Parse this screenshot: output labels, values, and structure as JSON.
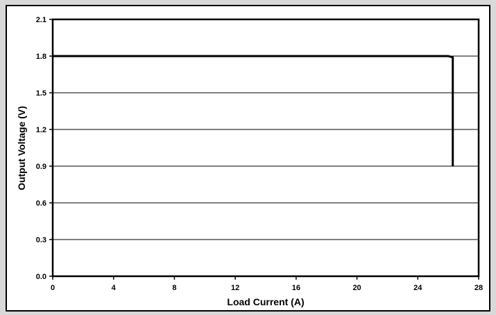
{
  "chart_data": {
    "type": "line",
    "title": "",
    "xlabel": "Load Current (A)",
    "ylabel": "Output Voltage (V)",
    "xlim": [
      0,
      28
    ],
    "ylim": [
      0,
      2.1
    ],
    "x_ticks": [
      "0",
      "4",
      "8",
      "12",
      "16",
      "20",
      "24",
      "28"
    ],
    "y_ticks": [
      "0.0",
      "0.3",
      "0.6",
      "0.9",
      "1.2",
      "1.5",
      "1.8",
      "2.1"
    ],
    "grid": "horizontal",
    "legend": "none",
    "series": [
      {
        "color": "#000000",
        "x": [
          0,
          5,
          10,
          15,
          20,
          25,
          26.0,
          26.3,
          26.3
        ],
        "y": [
          1.8,
          1.8,
          1.8,
          1.8,
          1.8,
          1.8,
          1.8,
          1.79,
          0.9
        ]
      }
    ]
  }
}
